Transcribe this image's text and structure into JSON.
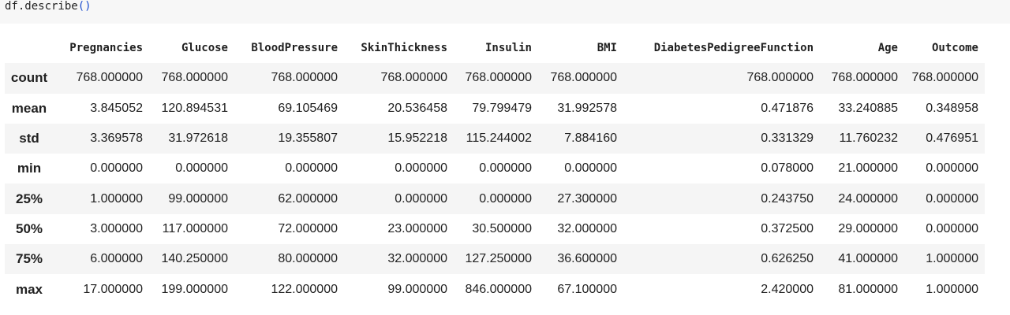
{
  "code_cell": {
    "code_text": "df.describe",
    "code_parens": "()"
  },
  "table": {
    "columns": [
      "",
      "Pregnancies",
      "Glucose",
      "BloodPressure",
      "SkinThickness",
      "Insulin",
      "BMI",
      "DiabetesPedigreeFunction",
      "Age",
      "Outcome"
    ],
    "rows": [
      {
        "label": "count",
        "values": [
          "768.000000",
          "768.000000",
          "768.000000",
          "768.000000",
          "768.000000",
          "768.000000",
          "768.000000",
          "768.000000",
          "768.000000"
        ]
      },
      {
        "label": "mean",
        "values": [
          "3.845052",
          "120.894531",
          "69.105469",
          "20.536458",
          "79.799479",
          "31.992578",
          "0.471876",
          "33.240885",
          "0.348958"
        ]
      },
      {
        "label": "std",
        "values": [
          "3.369578",
          "31.972618",
          "19.355807",
          "15.952218",
          "115.244002",
          "7.884160",
          "0.331329",
          "11.760232",
          "0.476951"
        ]
      },
      {
        "label": "min",
        "values": [
          "0.000000",
          "0.000000",
          "0.000000",
          "0.000000",
          "0.000000",
          "0.000000",
          "0.078000",
          "21.000000",
          "0.000000"
        ]
      },
      {
        "label": "25%",
        "values": [
          "1.000000",
          "99.000000",
          "62.000000",
          "0.000000",
          "0.000000",
          "27.300000",
          "0.243750",
          "24.000000",
          "0.000000"
        ]
      },
      {
        "label": "50%",
        "values": [
          "3.000000",
          "117.000000",
          "72.000000",
          "23.000000",
          "30.500000",
          "32.000000",
          "0.372500",
          "29.000000",
          "0.000000"
        ]
      },
      {
        "label": "75%",
        "values": [
          "6.000000",
          "140.250000",
          "80.000000",
          "32.000000",
          "127.250000",
          "36.600000",
          "0.626250",
          "41.000000",
          "1.000000"
        ]
      },
      {
        "label": "max",
        "values": [
          "17.000000",
          "199.000000",
          "122.000000",
          "99.000000",
          "846.000000",
          "67.100000",
          "2.420000",
          "81.000000",
          "1.000000"
        ]
      }
    ]
  }
}
